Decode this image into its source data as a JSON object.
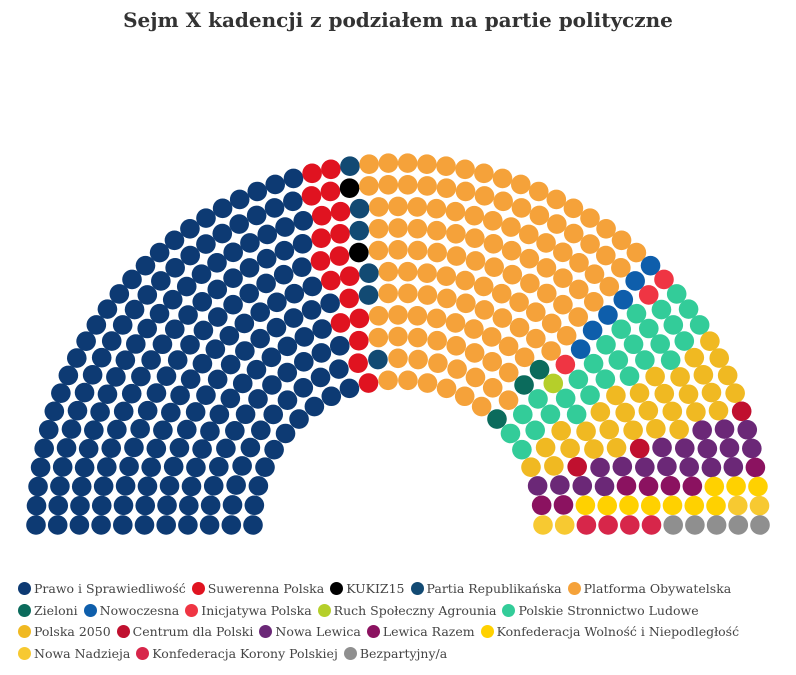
{
  "chart_data": {
    "type": "parliament",
    "title": "Sejm X kadencji z podziałem na partie polityczne",
    "total_seats": 460,
    "series": [
      {
        "name": "Prawo i Sprawiedliwość",
        "seats": 189,
        "color": "#0d3a73"
      },
      {
        "name": "Suwerenna Polska",
        "seats": 18,
        "color": "#e01320"
      },
      {
        "name": "KUKIZ15",
        "seats": 2,
        "color": "#000000"
      },
      {
        "name": "Partia Republikańska",
        "seats": 6,
        "color": "#124a73"
      },
      {
        "name": "Platforma Obywatelska",
        "seats": 121,
        "color": "#f5a23a"
      },
      {
        "name": "Zieloni",
        "seats": 3,
        "color": "#0b6b5c"
      },
      {
        "name": "Nowoczesna",
        "seats": 6,
        "color": "#0e5eab"
      },
      {
        "name": "Inicjatywa Polska",
        "seats": 3,
        "color": "#ef3543"
      },
      {
        "name": "Ruch Społeczny Agrounia",
        "seats": 1,
        "color": "#b5cf2a"
      },
      {
        "name": "Polskie Stronnictwo Ludowe",
        "seats": 28,
        "color": "#33cc99"
      },
      {
        "name": "Polska 2050",
        "seats": 31,
        "color": "#f0b922"
      },
      {
        "name": "Centrum dla Polski",
        "seats": 3,
        "color": "#c0102f"
      },
      {
        "name": "Nowa Lewica",
        "seats": 19,
        "color": "#6b2877"
      },
      {
        "name": "Lewica Razem",
        "seats": 7,
        "color": "#8b1260"
      },
      {
        "name": "Konfederacja Wolność i Niepodległość",
        "seats": 10,
        "color": "#ffd100"
      },
      {
        "name": "Nowa Nadzieja",
        "seats": 4,
        "color": "#f7c931"
      },
      {
        "name": "Konfederacja Korony Polskiej",
        "seats": 4,
        "color": "#d7264a"
      },
      {
        "name": "Bezpartyjny/a",
        "seats": 5,
        "color": "#8f8f8f"
      }
    ]
  }
}
